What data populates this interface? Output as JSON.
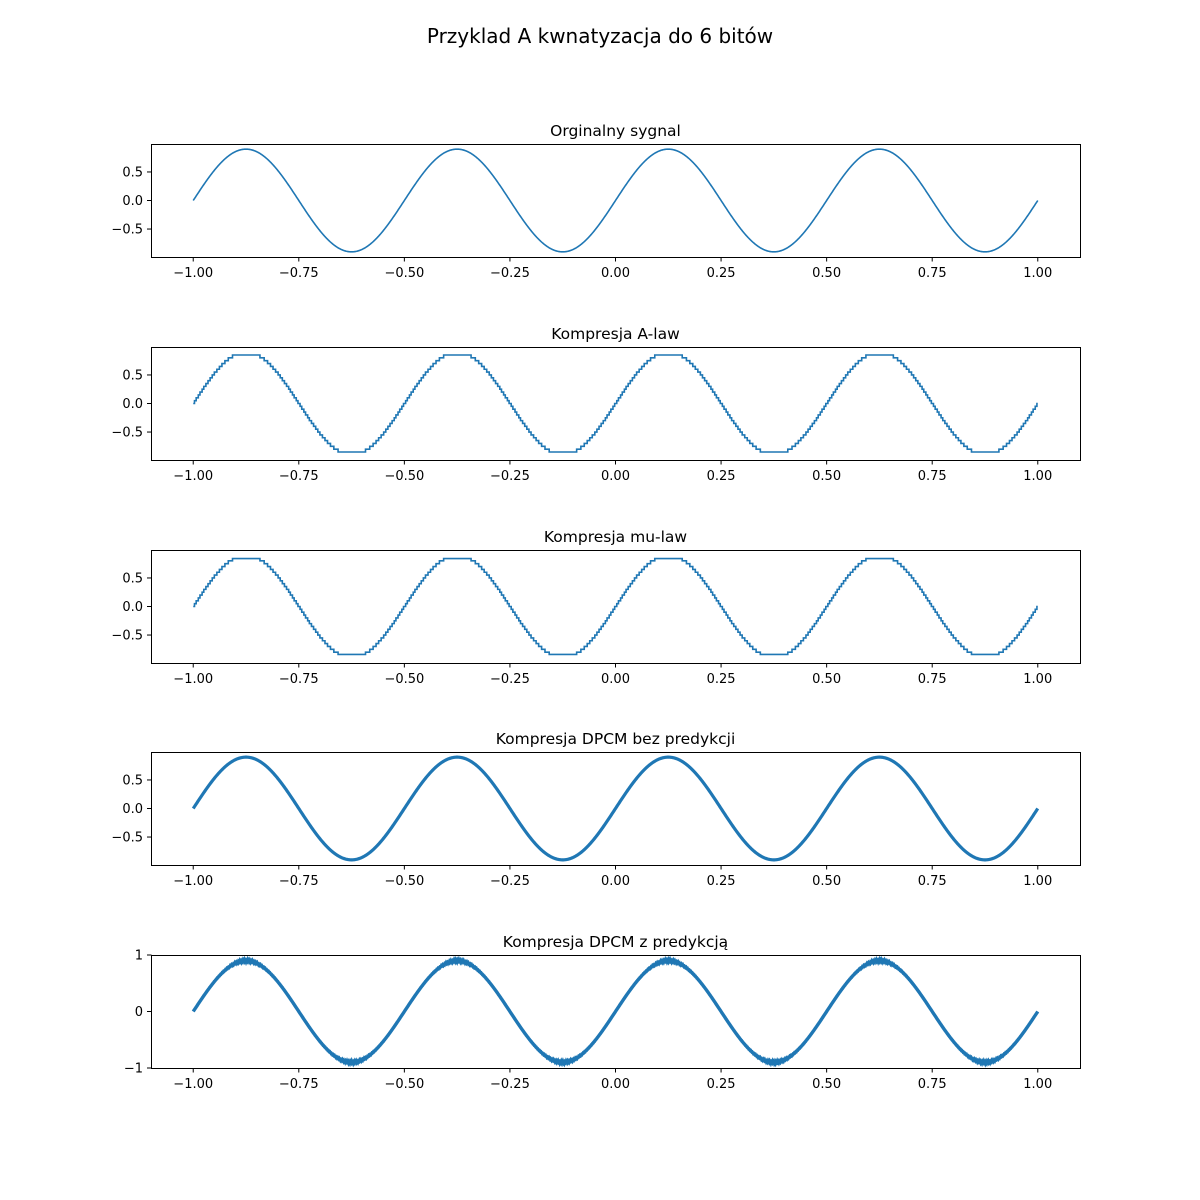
{
  "figure": {
    "suptitle": "Przyklad  A kwnatyzacja do 6 bitów"
  },
  "colors": {
    "line": "#1f77b4",
    "axes": "#000000",
    "background": "#ffffff"
  },
  "chart_data": [
    {
      "type": "line",
      "title": "Orginalny sygnal",
      "xlabel": "",
      "ylabel": "",
      "xlim": [
        -1.1,
        1.1
      ],
      "ylim": [
        -0.99,
        0.99
      ],
      "xticks": [
        -1.0,
        -0.75,
        -0.5,
        -0.25,
        0.0,
        0.25,
        0.5,
        0.75,
        1.0
      ],
      "xtick_labels": [
        "−1.00",
        "−0.75",
        "−0.50",
        "−0.25",
        "0.00",
        "0.25",
        "0.50",
        "0.75",
        "1.00"
      ],
      "yticks": [
        0.5,
        0.0,
        -0.5
      ],
      "ytick_labels": [
        "0.5",
        "0.0",
        "−0.5"
      ],
      "grid": false,
      "signal": {
        "function": "sin",
        "amplitude": 0.9,
        "cycles": 4,
        "x_range": [
          -1.0,
          1.0
        ]
      },
      "series": [
        {
          "style": "smooth"
        }
      ]
    },
    {
      "type": "line",
      "title": "Kompresja A-law",
      "xlabel": "",
      "ylabel": "",
      "xlim": [
        -1.1,
        1.1
      ],
      "ylim": [
        -0.99,
        0.99
      ],
      "xticks": [
        -1.0,
        -0.75,
        -0.5,
        -0.25,
        0.0,
        0.25,
        0.5,
        0.75,
        1.0
      ],
      "xtick_labels": [
        "−1.00",
        "−0.75",
        "−0.50",
        "−0.25",
        "0.00",
        "0.25",
        "0.50",
        "0.75",
        "1.00"
      ],
      "yticks": [
        0.5,
        0.0,
        -0.5
      ],
      "ytick_labels": [
        "0.5",
        "0.0",
        "−0.5"
      ],
      "grid": false,
      "signal": {
        "function": "sin",
        "amplitude": 0.9,
        "cycles": 4,
        "x_range": [
          -1.0,
          1.0
        ]
      },
      "series": [
        {
          "style": "stepped",
          "quantization": "A-law",
          "bits": 6,
          "saturation": 0.85
        }
      ]
    },
    {
      "type": "line",
      "title": "Kompresja mu-law",
      "xlabel": "",
      "ylabel": "",
      "xlim": [
        -1.1,
        1.1
      ],
      "ylim": [
        -0.99,
        0.99
      ],
      "xticks": [
        -1.0,
        -0.75,
        -0.5,
        -0.25,
        0.0,
        0.25,
        0.5,
        0.75,
        1.0
      ],
      "xtick_labels": [
        "−1.00",
        "−0.75",
        "−0.50",
        "−0.25",
        "0.00",
        "0.25",
        "0.50",
        "0.75",
        "1.00"
      ],
      "yticks": [
        0.5,
        0.0,
        -0.5
      ],
      "ytick_labels": [
        "0.5",
        "0.0",
        "−0.5"
      ],
      "grid": false,
      "signal": {
        "function": "sin",
        "amplitude": 0.9,
        "cycles": 4,
        "x_range": [
          -1.0,
          1.0
        ]
      },
      "series": [
        {
          "style": "stepped",
          "quantization": "mu-law",
          "bits": 6,
          "saturation": 0.84
        }
      ]
    },
    {
      "type": "line",
      "title": "Kompresja DPCM bez predykcji",
      "xlabel": "",
      "ylabel": "",
      "xlim": [
        -1.1,
        1.1
      ],
      "ylim": [
        -0.99,
        0.99
      ],
      "xticks": [
        -1.0,
        -0.75,
        -0.5,
        -0.25,
        0.0,
        0.25,
        0.5,
        0.75,
        1.0
      ],
      "xtick_labels": [
        "−1.00",
        "−0.75",
        "−0.50",
        "−0.25",
        "0.00",
        "0.25",
        "0.50",
        "0.75",
        "1.00"
      ],
      "yticks": [
        0.5,
        0.0,
        -0.5
      ],
      "ytick_labels": [
        "0.5",
        "0.0",
        "−0.5"
      ],
      "grid": false,
      "signal": {
        "function": "sin",
        "amplitude": 0.9,
        "cycles": 4,
        "x_range": [
          -1.0,
          1.0
        ]
      },
      "series": [
        {
          "style": "thick"
        }
      ]
    },
    {
      "type": "line",
      "title": "Kompresja DPCM z predykcją",
      "xlabel": "",
      "ylabel": "",
      "xlim": [
        -1.1,
        1.1
      ],
      "ylim": [
        -1.0,
        1.0
      ],
      "xticks": [
        -1.0,
        -0.75,
        -0.5,
        -0.25,
        0.0,
        0.25,
        0.5,
        0.75,
        1.0
      ],
      "xtick_labels": [
        "−1.00",
        "−0.75",
        "−0.50",
        "−0.25",
        "0.00",
        "0.25",
        "0.50",
        "0.75",
        "1.00"
      ],
      "yticks": [
        1,
        0,
        -1
      ],
      "ytick_labels": [
        "1",
        "0",
        "−1"
      ],
      "grid": false,
      "signal": {
        "function": "sin",
        "amplitude": 0.9,
        "cycles": 4,
        "x_range": [
          -1.0,
          1.0
        ]
      },
      "series": [
        {
          "style": "thick-jitter"
        }
      ]
    }
  ]
}
